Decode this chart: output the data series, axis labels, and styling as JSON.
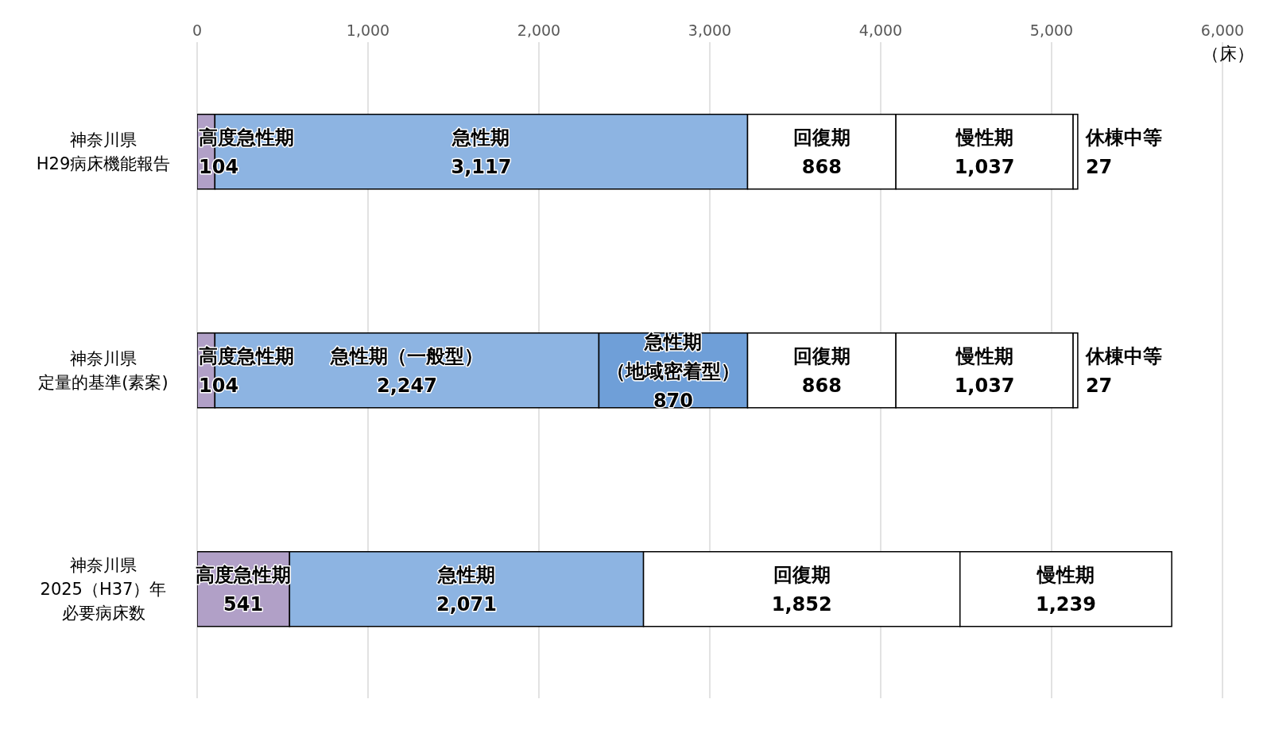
{
  "chart_data": {
    "type": "bar",
    "orientation": "horizontal",
    "stacked": true,
    "xlabel": "（床）",
    "categories": [
      "神奈川県H29病床機能報告",
      "神奈川県定量的基準(素案)",
      "神奈川県2025（H37）年必要病床数"
    ],
    "series": [
      {
        "name": "高度急性期",
        "color": "#b1a0c7",
        "values": [
          104,
          104,
          541
        ],
        "value_labels": [
          "104",
          "104",
          "541"
        ]
      },
      {
        "name": "急性期",
        "color": "#8db4e2",
        "values": [
          3117,
          null,
          2071
        ],
        "value_labels": [
          "3,117",
          null,
          "2,071"
        ]
      },
      {
        "name": "急性期（一般型）",
        "color": "#8db4e2",
        "values": [
          null,
          2247,
          null
        ],
        "value_labels": [
          null,
          "2,247",
          null
        ]
      },
      {
        "name": "急性期（地域密着型）",
        "color": "#6f9fd8",
        "values": [
          null,
          870,
          null
        ],
        "value_labels": [
          null,
          "870",
          null
        ]
      },
      {
        "name": "回復期",
        "color": "#ffffff",
        "values": [
          868,
          868,
          1852
        ],
        "value_labels": [
          "868",
          "868",
          "1,852"
        ]
      },
      {
        "name": "慢性期",
        "color": "#ffffff",
        "values": [
          1037,
          1037,
          1239
        ],
        "value_labels": [
          "1,037",
          "1,037",
          "1,239"
        ]
      },
      {
        "name": "休棟中等",
        "color": "#ffffff",
        "values": [
          27,
          27,
          null
        ],
        "value_labels": [
          "27",
          "27",
          null
        ]
      }
    ],
    "xlim": [
      0,
      6000
    ],
    "xticks": [
      {
        "value": 0,
        "label": "0"
      },
      {
        "value": 1000,
        "label": "1,000"
      },
      {
        "value": 2000,
        "label": "2,000"
      },
      {
        "value": 3000,
        "label": "3,000"
      },
      {
        "value": 4000,
        "label": "4,000"
      },
      {
        "value": 5000,
        "label": "5,000"
      },
      {
        "value": 6000,
        "label": "6,000"
      }
    ],
    "grid": "x",
    "legend": false
  }
}
